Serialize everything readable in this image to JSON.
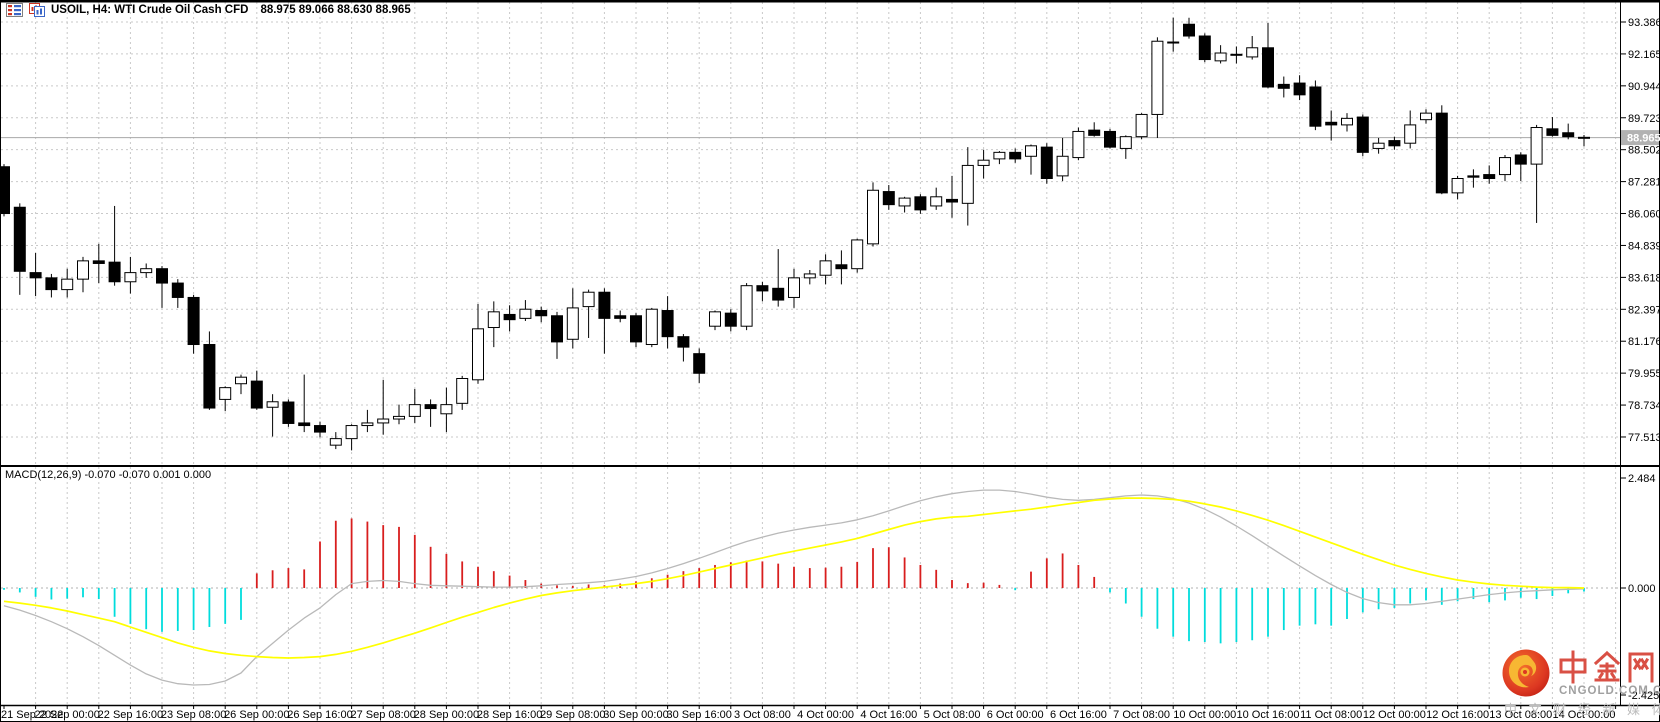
{
  "header": {
    "symbol_title": "USOIL, H4: WTI Crude Oil Cash CFD",
    "quote": "88.975 89.066 88.630 88.965",
    "icons": [
      "data-window-icon",
      "new-chart-icon"
    ]
  },
  "macd": {
    "label": "MACD(12,26,9) -0.070 -0.070 0.001 0.000"
  },
  "price_axis": {
    "ticks": [
      "93.386",
      "92.165",
      "90.944",
      "89.723",
      "88.502",
      "87.281",
      "86.060",
      "84.839",
      "83.618",
      "82.397",
      "81.176",
      "79.955",
      "78.734",
      "77.513"
    ],
    "current_price": "88.965"
  },
  "macd_axis": {
    "top": "2.484",
    "zero": "0.000",
    "bottom": "-2.425"
  },
  "time_axis": {
    "labels": [
      "21 Sep 2022",
      "22 Sep 00:00",
      "22 Sep 16:00",
      "23 Sep 08:00",
      "26 Sep 00:00",
      "26 Sep 16:00",
      "27 Sep 08:00",
      "28 Sep 00:00",
      "28 Sep 16:00",
      "29 Sep 08:00",
      "30 Sep 00:00",
      "30 Sep 16:00",
      "3 Oct 08:00",
      "4 Oct 00:00",
      "4 Oct 16:00",
      "5 Oct 08:00",
      "6 Oct 00:00",
      "6 Oct 16:00",
      "7 Oct 08:00",
      "10 Oct 00:00",
      "10 Oct 16:00",
      "11 Oct 08:00",
      "12 Oct 00:00",
      "12 Oct 16:00",
      "13 Oct 08:00",
      "14 Oct 00:00"
    ]
  },
  "watermark": {
    "brand_cn": "中金网",
    "domain": "CNGOLD.COM.CN",
    "tagline": "中 文 财 经 新 媒 体"
  },
  "colors": {
    "bull_body": "#ffffff",
    "bear_body": "#000000",
    "candle_outline": "#000000",
    "grid": "#c9c9c9",
    "panel_border": "#000000",
    "hist_positive": "#d81e1e",
    "hist_negative": "#00dcdc",
    "macd_signal_line": "#ffff00",
    "macd_main_line": "#b9b9b9",
    "price_line": "#a8a8a8",
    "price_tag_bg": "#b2b2b2",
    "price_tag_text": "#ffffff",
    "watermark_red": "#d95045",
    "watermark_logo": "#dd3822",
    "watermark_gold": "#f7b733"
  },
  "chart_data": {
    "type": "candlestick",
    "symbol": "USOIL",
    "timeframe": "H4",
    "title": "USOIL, H4: WTI Crude Oil Cash CFD",
    "y_axis": {
      "min": 77.513,
      "max": 93.386,
      "tick_step": 1.221
    },
    "macd_y_axis": {
      "min": -2.425,
      "max": 2.484
    },
    "x_label_every_n_candles": 4,
    "ohlc": {
      "open": [
        87.85,
        86.3,
        83.8,
        83.6,
        83.15,
        83.55,
        84.25,
        84.2,
        83.45,
        83.8,
        83.95,
        83.4,
        82.85,
        81.05,
        78.95,
        79.55,
        79.65,
        78.65,
        78.85,
        78.05,
        77.95,
        77.2,
        77.45,
        77.95,
        78.05,
        78.2,
        78.3,
        78.75,
        78.4,
        78.8,
        79.7,
        81.7,
        82.2,
        82.05,
        82.35,
        82.15,
        81.25,
        82.5,
        83.05,
        82.15,
        82.15,
        81.05,
        82.35,
        81.35,
        80.7,
        81.75,
        82.25,
        81.75,
        83.3,
        83.2,
        82.85,
        83.6,
        83.7,
        84.1,
        83.95,
        84.9,
        86.9,
        86.35,
        86.7,
        86.35,
        86.6,
        86.45,
        87.9,
        88.15,
        88.4,
        88.25,
        88.6,
        87.5,
        88.2,
        89.25,
        89.2,
        88.55,
        89.0,
        89.85,
        92.6,
        93.3,
        92.85,
        91.9,
        92.15,
        92.05,
        92.4,
        91.0,
        91.05,
        90.9,
        89.55,
        89.45,
        89.75,
        88.55,
        88.85,
        88.75,
        89.65,
        89.9,
        86.85,
        87.5,
        87.55,
        87.55,
        88.3,
        87.95,
        89.3,
        89.15,
        88.975
      ],
      "high": [
        87.95,
        86.45,
        84.55,
        83.75,
        83.95,
        84.4,
        84.9,
        86.35,
        84.4,
        84.15,
        84.05,
        83.55,
        82.95,
        81.55,
        79.45,
        79.9,
        80.05,
        79.15,
        78.95,
        79.9,
        78.1,
        77.7,
        78.0,
        78.55,
        79.7,
        78.75,
        79.35,
        78.95,
        79.4,
        79.85,
        82.6,
        82.7,
        82.55,
        82.75,
        82.5,
        82.3,
        83.2,
        83.15,
        83.2,
        82.35,
        82.25,
        82.45,
        82.9,
        81.45,
        80.9,
        82.35,
        82.4,
        83.4,
        83.45,
        84.7,
        83.95,
        83.9,
        84.5,
        84.65,
        85.1,
        87.25,
        87.15,
        86.7,
        86.8,
        87.05,
        87.5,
        88.6,
        88.5,
        88.45,
        88.55,
        88.7,
        88.75,
        88.95,
        89.35,
        89.55,
        89.3,
        89.05,
        89.9,
        92.8,
        93.55,
        93.55,
        92.95,
        92.5,
        92.45,
        92.85,
        93.35,
        91.3,
        91.35,
        91.15,
        90.0,
        89.9,
        89.85,
        88.95,
        89.0,
        90.0,
        90.05,
        90.2,
        87.5,
        87.75,
        87.9,
        88.3,
        88.4,
        89.45,
        89.75,
        89.5,
        89.066
      ],
      "low": [
        85.95,
        82.95,
        82.9,
        82.85,
        82.85,
        83.05,
        83.4,
        83.3,
        83.0,
        83.6,
        82.45,
        82.45,
        80.7,
        78.55,
        78.5,
        79.15,
        78.55,
        77.53,
        77.9,
        77.7,
        77.5,
        77.05,
        77.0,
        77.7,
        77.6,
        78.0,
        78.05,
        77.9,
        77.7,
        78.55,
        79.55,
        80.95,
        81.55,
        81.95,
        81.9,
        80.5,
        80.9,
        81.3,
        80.7,
        81.9,
        80.95,
        80.95,
        80.9,
        80.4,
        79.58,
        81.6,
        81.55,
        81.6,
        82.7,
        82.5,
        82.45,
        83.35,
        83.35,
        83.35,
        83.8,
        84.8,
        86.2,
        86.1,
        86.05,
        86.2,
        85.9,
        85.6,
        87.4,
        87.95,
        88.0,
        87.55,
        87.2,
        87.3,
        88.1,
        89.0,
        88.55,
        88.15,
        88.9,
        88.95,
        92.25,
        92.75,
        91.85,
        91.8,
        91.8,
        91.95,
        90.85,
        90.5,
        90.4,
        89.25,
        88.85,
        89.2,
        88.25,
        88.35,
        88.5,
        88.55,
        89.5,
        86.8,
        86.6,
        87.05,
        87.2,
        87.3,
        87.3,
        85.7,
        89.0,
        88.9,
        88.63
      ],
      "close": [
        86.06,
        83.85,
        83.6,
        83.15,
        83.55,
        84.25,
        84.15,
        83.45,
        83.8,
        83.95,
        83.4,
        82.85,
        81.05,
        78.62,
        79.4,
        79.8,
        78.62,
        78.86,
        78.03,
        77.95,
        77.7,
        77.45,
        77.95,
        78.05,
        78.2,
        78.3,
        78.75,
        78.6,
        78.75,
        79.75,
        81.65,
        82.3,
        82.0,
        82.4,
        82.15,
        81.15,
        82.45,
        83.05,
        82.05,
        82.05,
        81.15,
        82.4,
        81.35,
        80.95,
        79.95,
        82.3,
        81.75,
        83.3,
        83.1,
        82.75,
        83.6,
        83.75,
        84.25,
        83.95,
        85.05,
        86.95,
        86.4,
        86.65,
        86.2,
        86.7,
        86.5,
        87.9,
        88.1,
        88.4,
        88.15,
        88.65,
        87.4,
        88.25,
        89.2,
        89.05,
        88.6,
        89.0,
        89.85,
        92.65,
        92.62,
        92.85,
        91.95,
        92.2,
        92.15,
        92.4,
        90.9,
        90.85,
        90.6,
        89.4,
        89.45,
        89.7,
        88.4,
        88.75,
        88.65,
        89.45,
        89.9,
        86.85,
        87.4,
        87.45,
        87.4,
        88.2,
        87.95,
        89.35,
        89.05,
        89.0,
        88.965
      ]
    },
    "indicator": {
      "name": "MACD(12,26,9)",
      "histogram": [
        -0.04,
        -0.1,
        -0.2,
        -0.26,
        -0.24,
        -0.21,
        -0.25,
        -0.65,
        -0.81,
        -0.93,
        -0.99,
        -0.97,
        -0.95,
        -0.88,
        -0.81,
        -0.72,
        0.33,
        0.4,
        0.45,
        0.42,
        1.05,
        1.52,
        1.57,
        1.5,
        1.42,
        1.38,
        1.2,
        0.93,
        0.77,
        0.6,
        0.48,
        0.38,
        0.28,
        0.18,
        0.1,
        0.06,
        0.05,
        0.08,
        0.06,
        0.1,
        0.15,
        0.22,
        0.3,
        0.38,
        0.45,
        0.52,
        0.58,
        0.62,
        0.6,
        0.55,
        0.48,
        0.45,
        0.46,
        0.48,
        0.59,
        0.9,
        0.92,
        0.69,
        0.52,
        0.41,
        0.18,
        0.11,
        0.12,
        0.07,
        -0.05,
        0.37,
        0.67,
        0.78,
        0.52,
        0.25,
        -0.1,
        -0.35,
        -0.65,
        -0.92,
        -1.1,
        -1.2,
        -1.22,
        -1.25,
        -1.22,
        -1.18,
        -1.1,
        -0.95,
        -0.85,
        -0.82,
        -0.85,
        -0.7,
        -0.55,
        -0.48,
        -0.45,
        -0.35,
        -0.28,
        -0.38,
        -0.3,
        -0.25,
        -0.32,
        -0.28,
        -0.22,
        -0.25,
        -0.18,
        -0.12,
        -0.08
      ],
      "signal": [
        -0.3,
        -0.34,
        -0.39,
        -0.45,
        -0.52,
        -0.6,
        -0.68,
        -0.76,
        -0.88,
        -1.0,
        -1.12,
        -1.24,
        -1.34,
        -1.42,
        -1.48,
        -1.52,
        -1.55,
        -1.57,
        -1.58,
        -1.57,
        -1.55,
        -1.5,
        -1.43,
        -1.34,
        -1.24,
        -1.13,
        -1.02,
        -0.9,
        -0.78,
        -0.66,
        -0.55,
        -0.44,
        -0.34,
        -0.25,
        -0.17,
        -0.11,
        -0.06,
        -0.02,
        0.02,
        0.06,
        0.1,
        0.15,
        0.21,
        0.28,
        0.36,
        0.44,
        0.52,
        0.6,
        0.68,
        0.76,
        0.83,
        0.9,
        0.97,
        1.04,
        1.12,
        1.22,
        1.32,
        1.42,
        1.5,
        1.56,
        1.6,
        1.62,
        1.66,
        1.7,
        1.74,
        1.78,
        1.83,
        1.88,
        1.93,
        1.98,
        2.01,
        2.03,
        2.03,
        2.02,
        2.0,
        1.96,
        1.9,
        1.83,
        1.74,
        1.64,
        1.53,
        1.41,
        1.28,
        1.15,
        1.02,
        0.89,
        0.76,
        0.64,
        0.52,
        0.42,
        0.33,
        0.25,
        0.18,
        0.13,
        0.09,
        0.06,
        0.04,
        0.02,
        0.01,
        0.01,
        0.0
      ],
      "main": [
        -0.4,
        -0.5,
        -0.62,
        -0.76,
        -0.92,
        -1.1,
        -1.3,
        -1.52,
        -1.74,
        -1.94,
        -2.08,
        -2.16,
        -2.19,
        -2.18,
        -2.1,
        -1.92,
        -1.55,
        -1.25,
        -0.95,
        -0.68,
        -0.45,
        -0.15,
        0.1,
        0.15,
        0.17,
        0.15,
        0.1,
        0.06,
        0.05,
        0.04,
        0.03,
        0.02,
        0.02,
        0.03,
        0.05,
        0.08,
        0.1,
        0.12,
        0.15,
        0.2,
        0.26,
        0.34,
        0.44,
        0.55,
        0.67,
        0.8,
        0.93,
        1.05,
        1.15,
        1.24,
        1.31,
        1.37,
        1.42,
        1.47,
        1.54,
        1.63,
        1.74,
        1.86,
        1.97,
        2.06,
        2.13,
        2.18,
        2.21,
        2.21,
        2.18,
        2.12,
        2.05,
        2.0,
        1.98,
        2.0,
        2.04,
        2.08,
        2.1,
        2.08,
        2.02,
        1.92,
        1.78,
        1.6,
        1.4,
        1.18,
        0.95,
        0.72,
        0.5,
        0.28,
        0.08,
        -0.1,
        -0.24,
        -0.33,
        -0.38,
        -0.38,
        -0.35,
        -0.3,
        -0.25,
        -0.2,
        -0.15,
        -0.11,
        -0.08,
        -0.06,
        -0.04,
        -0.03,
        -0.02
      ]
    }
  }
}
